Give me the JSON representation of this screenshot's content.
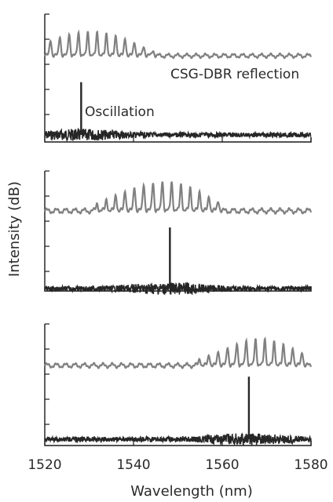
{
  "chart_data": [
    {
      "type": "line",
      "panel": 1,
      "title": "",
      "xlabel": "Wavelength (nm)",
      "ylabel": "Intensity (dB)",
      "xlim": [
        1520,
        1580
      ],
      "grid": false,
      "x_ticks": [
        1520,
        1540,
        1560,
        1580
      ],
      "annotations": [
        "CSG-DBR reflection",
        "Oscillation"
      ],
      "series": [
        {
          "color": "#808080",
          "comb_start": 1520,
          "comb_spacing": 2.1,
          "x": [
            1521.3,
            1523.4,
            1525.5,
            1527.6,
            1529.7,
            1531.8,
            1533.9,
            1536.0,
            1538.1,
            1540.2,
            1542.3,
            1544.4
          ],
          "values": [
            0.45,
            0.55,
            0.62,
            0.66,
            0.68,
            0.67,
            0.64,
            0.58,
            0.5,
            0.4,
            0.28,
            0.16
          ]
        },
        {
          "color": "#262626",
          "peak_x": 1528.2,
          "peak_value": 0.96
        }
      ]
    },
    {
      "type": "line",
      "panel": 2,
      "xlim": [
        1520,
        1580
      ],
      "grid": false,
      "series": [
        {
          "color": "#808080",
          "comb_start": 1520,
          "comb_spacing": 2.1,
          "x": [
            1531.8,
            1533.9,
            1536.0,
            1538.1,
            1540.2,
            1542.3,
            1544.4,
            1546.5,
            1548.6,
            1550.7,
            1552.8,
            1554.9,
            1557.0,
            1559.1
          ],
          "values": [
            0.18,
            0.28,
            0.38,
            0.47,
            0.56,
            0.62,
            0.66,
            0.68,
            0.67,
            0.62,
            0.55,
            0.46,
            0.35,
            0.24
          ]
        },
        {
          "color": "#262626",
          "peak_x": 1548.2,
          "peak_value": 1.0
        }
      ]
    },
    {
      "type": "line",
      "panel": 3,
      "xlim": [
        1520,
        1580
      ],
      "grid": false,
      "series": [
        {
          "color": "#808080",
          "comb_start": 1520,
          "comb_spacing": 2.1,
          "x": [
            1554.9,
            1557.0,
            1559.1,
            1561.2,
            1563.3,
            1565.4,
            1567.5,
            1569.6,
            1571.7,
            1573.8,
            1575.9,
            1578.0
          ],
          "values": [
            0.18,
            0.28,
            0.38,
            0.48,
            0.57,
            0.64,
            0.68,
            0.67,
            0.62,
            0.55,
            0.45,
            0.35
          ]
        },
        {
          "color": "#262626",
          "peak_x": 1566.0,
          "peak_value": 0.95
        }
      ]
    }
  ]
}
